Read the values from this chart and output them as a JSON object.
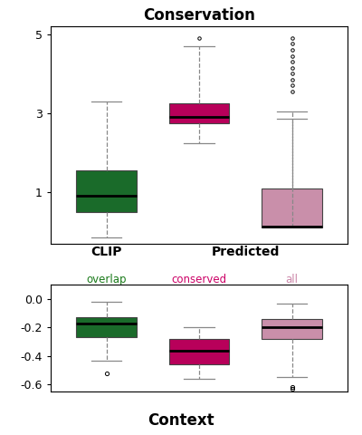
{
  "title_top": "Conservation",
  "title_bottom": "Context",
  "label_clip": "CLIP",
  "label_predicted": "Predicted",
  "sub_labels": [
    "overlap",
    "conserved",
    "all"
  ],
  "sub_label_colors": [
    "#1a7a1a",
    "#cc0066",
    "#cc88aa"
  ],
  "colors": [
    "#1a6b2a",
    "#b8005a",
    "#c98faa"
  ],
  "conservation": {
    "box1": {
      "q1": 0.5,
      "median": 0.9,
      "q3": 1.55,
      "whislo": -0.15,
      "whishi": 3.3,
      "fliers": []
    },
    "box2": {
      "q1": 2.75,
      "median": 2.9,
      "q3": 3.25,
      "whislo": 2.25,
      "whishi": 4.7,
      "fliers": [
        4.9
      ]
    },
    "box3": {
      "q1": 0.1,
      "median": 0.12,
      "q3": 1.1,
      "whislo": 2.85,
      "whishi": 3.05,
      "fliers": [
        4.9,
        4.75,
        4.6,
        4.45,
        4.3,
        4.15,
        4.0,
        3.85,
        3.7,
        3.55
      ]
    }
  },
  "context": {
    "box1": {
      "q1": -0.27,
      "median": -0.17,
      "q3": -0.13,
      "whislo": -0.43,
      "whishi": -0.02,
      "fliers": [
        -0.52
      ]
    },
    "box2": {
      "q1": -0.46,
      "median": -0.36,
      "q3": -0.28,
      "whislo": -0.56,
      "whishi": -0.2,
      "fliers": []
    },
    "box3": {
      "q1": -0.28,
      "median": -0.2,
      "q3": -0.14,
      "whislo": -0.55,
      "whishi": -0.03,
      "fliers": [
        -0.62,
        -0.63
      ]
    }
  },
  "conservation_ylim": [
    -0.3,
    5.2
  ],
  "conservation_yticks": [
    1,
    3,
    5
  ],
  "context_ylim": [
    -0.65,
    0.1
  ],
  "context_yticks": [
    0.0,
    -0.2,
    -0.4,
    -0.6
  ],
  "box_width": 0.65
}
